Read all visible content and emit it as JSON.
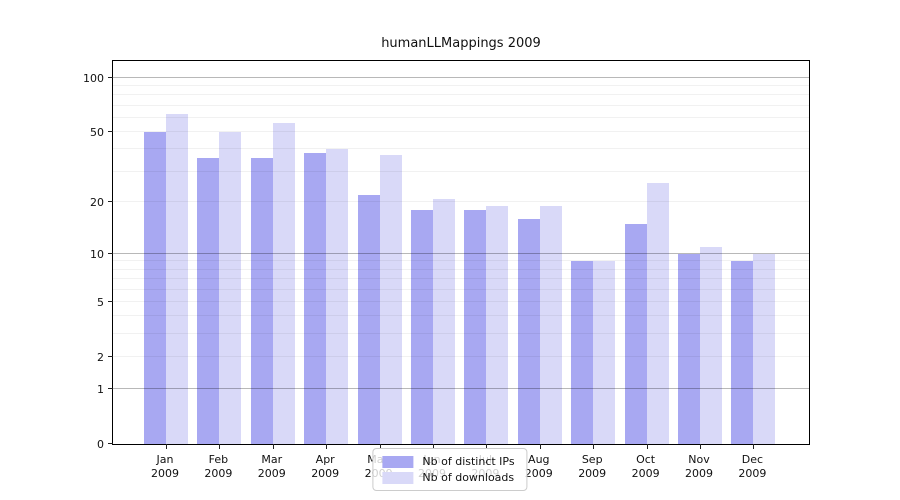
{
  "title": "humanLLMappings 2009",
  "chart_data": {
    "type": "bar",
    "title": "humanLLMappings 2009",
    "categories": [
      "Jan 2009",
      "Feb 2009",
      "Mar 2009",
      "Apr 2009",
      "May 2009",
      "Jun 2009",
      "Jul 2009",
      "Aug 2009",
      "Sep 2009",
      "Oct 2009",
      "Nov 2009",
      "Dec 2009"
    ],
    "series": [
      {
        "name": "Nb of distinct IPs",
        "color": "#a8a8f2",
        "values": [
          50,
          36,
          36,
          38,
          22,
          18,
          18,
          16,
          9,
          15,
          10,
          9
        ]
      },
      {
        "name": "Nb of downloads",
        "color": "#d9d9f8",
        "values": [
          63,
          50,
          56,
          40,
          37,
          21,
          19,
          19,
          9,
          26,
          11,
          10
        ]
      }
    ],
    "y_axis": {
      "scale": "log1p",
      "max": 127,
      "ticks": [
        0,
        1,
        2,
        5,
        10,
        20,
        50,
        100
      ],
      "major_gridlines": [
        1,
        10,
        100
      ],
      "minor_gridlines": [
        2,
        3,
        4,
        5,
        6,
        7,
        8,
        9,
        20,
        30,
        40,
        50,
        60,
        70,
        80,
        90
      ]
    },
    "xlabel": "",
    "ylabel": "",
    "grid": true,
    "legend_position": "inside-bottom-center"
  }
}
